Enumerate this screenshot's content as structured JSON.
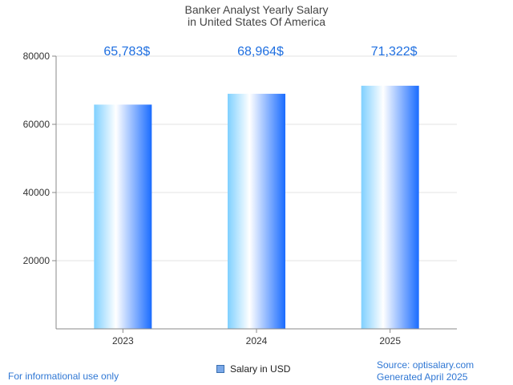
{
  "title": {
    "line1": "Banker Analyst Yearly Salary",
    "line2": " in United States Of America"
  },
  "footer": {
    "disclaimer": "For informational use only",
    "source": "Source: optisalary.com",
    "generated": "Generated April 2025"
  },
  "legend": {
    "label": "Salary in USD"
  },
  "colors": {
    "bar_light": "#ffffff",
    "bar_mid": "#7fd0ff",
    "bar_dark": "#1a6cff",
    "label_text": "#1f6fe0",
    "grid": "#e3e3e3",
    "axis": "#888888"
  },
  "chart_data": {
    "type": "bar",
    "categories": [
      "2023",
      "2024",
      "2025"
    ],
    "series": [
      {
        "name": "Salary in USD",
        "values": [
          65783,
          68964,
          71322
        ]
      }
    ],
    "data_labels": [
      "65,783$",
      "68,964$",
      "71,322$"
    ],
    "ylim": [
      0,
      80000
    ],
    "yticks": [
      20000,
      40000,
      60000,
      80000
    ],
    "grid": true,
    "legend_position": "bottom",
    "xlabel": "",
    "ylabel": ""
  }
}
